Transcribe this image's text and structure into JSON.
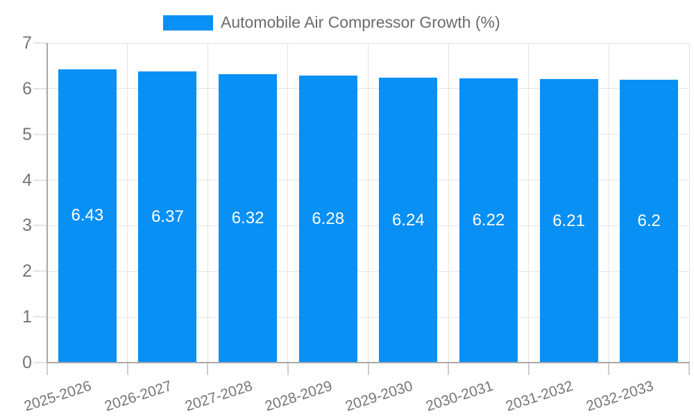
{
  "colors": {
    "bar": "#0890f5",
    "grid_line": "#e4e4e4",
    "axis_line": "#a8a8a8",
    "tick_line": "#cccccc",
    "tick_text": "#757575",
    "legend_text": "#6b6b6b",
    "value_text": "#ffffff",
    "background": "#ffffff"
  },
  "chart_data": {
    "type": "bar",
    "categories": [
      "2025-2026",
      "2026-2027",
      "2027-2028",
      "2028-2029",
      "2029-2030",
      "2030-2031",
      "2031-2032",
      "2032-2033"
    ],
    "series": [
      {
        "name": "Automobile Air Compressor Growth (%)",
        "values": [
          6.43,
          6.37,
          6.32,
          6.28,
          6.24,
          6.22,
          6.21,
          6.2
        ],
        "data_labels": [
          "6.43",
          "6.37",
          "6.32",
          "6.28",
          "6.24",
          "6.22",
          "6.21",
          "6.2"
        ]
      }
    ],
    "xlabel": "",
    "ylabel": "",
    "ylim": [
      0,
      7
    ],
    "yticks": [
      "0",
      "1",
      "2",
      "3",
      "4",
      "5",
      "6",
      "7"
    ],
    "grid": true,
    "legend_position": "top-center",
    "x_tick_rotation_deg": -18
  }
}
